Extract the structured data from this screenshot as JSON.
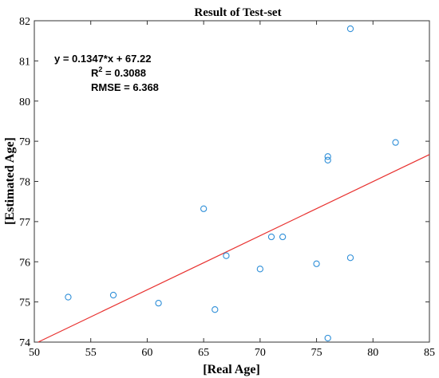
{
  "chart_data": {
    "type": "scatter",
    "title": "Result of Test-set",
    "xlabel": "[Real Age]",
    "ylabel": "[Estimated Age]",
    "xlim": [
      50,
      85
    ],
    "ylim": [
      74,
      82
    ],
    "xticks": [
      50,
      55,
      60,
      65,
      70,
      75,
      80,
      85
    ],
    "yticks": [
      74,
      75,
      76,
      77,
      78,
      79,
      80,
      81,
      82
    ],
    "grid": false,
    "points": [
      {
        "x": 53,
        "y": 75.12
      },
      {
        "x": 57,
        "y": 75.17
      },
      {
        "x": 61,
        "y": 74.97
      },
      {
        "x": 65,
        "y": 77.32
      },
      {
        "x": 66,
        "y": 74.81
      },
      {
        "x": 67,
        "y": 76.15
      },
      {
        "x": 70,
        "y": 75.82
      },
      {
        "x": 71,
        "y": 76.62
      },
      {
        "x": 72,
        "y": 76.62
      },
      {
        "x": 75,
        "y": 75.95
      },
      {
        "x": 76,
        "y": 78.62
      },
      {
        "x": 76,
        "y": 78.53
      },
      {
        "x": 76,
        "y": 74.1
      },
      {
        "x": 78,
        "y": 81.8
      },
      {
        "x": 78,
        "y": 76.1
      },
      {
        "x": 82,
        "y": 78.97
      }
    ],
    "fit_line": {
      "slope": 0.1347,
      "intercept": 67.22
    },
    "annotations": {
      "equation": "y = 0.1347*x + 67.22",
      "r2_label": "R",
      "r2_sup": "2",
      "r2_value": " = 0.3088",
      "rmse": "RMSE = 6.368"
    },
    "colors": {
      "marker": "#2f8fd8",
      "fit_line": "#e8312f",
      "axis": "#333333"
    }
  }
}
